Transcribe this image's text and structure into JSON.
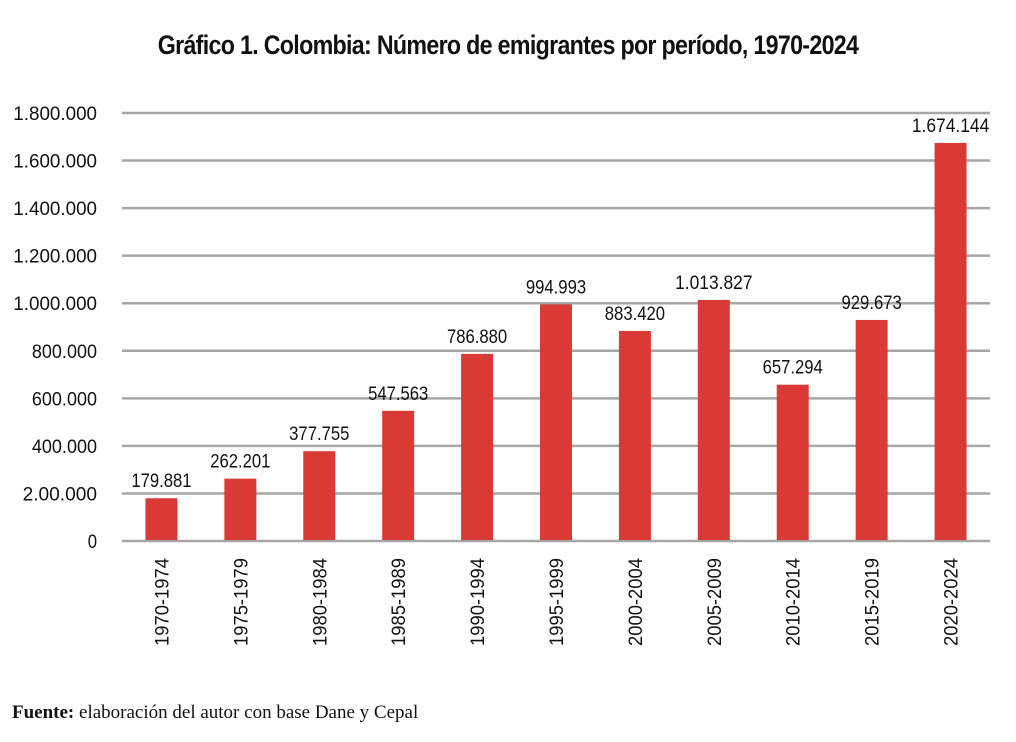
{
  "chart_data": {
    "type": "bar",
    "title": "Gráfico 1. Colombia: Número de emigrantes por período, 1970-2024",
    "xlabel": "",
    "ylabel": "",
    "categories": [
      "1970-1974",
      "1975-1979",
      "1980-1984",
      "1985-1989",
      "1990-1994",
      "1995-1999",
      "2000-2004",
      "2005-2009",
      "2010-2014",
      "2015-2019",
      "2020-2024"
    ],
    "values": [
      179881,
      262201,
      377755,
      547563,
      786880,
      994993,
      883420,
      1013827,
      657294,
      929673,
      1674144
    ],
    "data_labels": [
      "179.881",
      "262.201",
      "377.755",
      "547.563",
      "786.880",
      "994.993",
      "883.420",
      "1.013.827",
      "657.294",
      "929.673",
      "1.674.144"
    ],
    "ylim": [
      0,
      1800000
    ],
    "yticks": [
      0,
      200000,
      400000,
      600000,
      800000,
      1000000,
      1200000,
      1400000,
      1600000,
      1800000
    ],
    "ytick_labels": [
      "0",
      "2.00.000",
      "400.000",
      "600.000",
      "800.000",
      "1.000.000",
      "1.200.000",
      "1.400.000",
      "1.600.000",
      "1.800.000"
    ],
    "grid": true,
    "legend": "none",
    "bar_color": "#d93a35",
    "grid_color": "#a6a6a6"
  },
  "source": {
    "label": "Fuente:",
    "text": " elaboración del autor con base Dane y Cepal"
  }
}
